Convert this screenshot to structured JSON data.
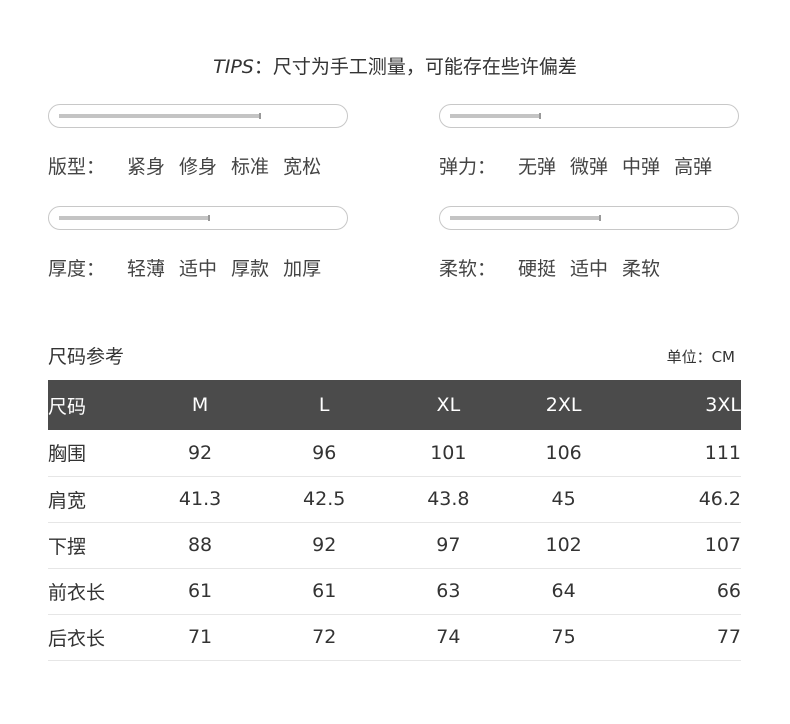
{
  "tips": {
    "prefix": "TIPS",
    "text": "：尺寸为手工测量，可能存在些许偏差"
  },
  "attributes": [
    {
      "label": "版型：",
      "options": [
        "紧身",
        "修身",
        "标准",
        "宽松"
      ],
      "level": 0.67
    },
    {
      "label": "弹力：",
      "options": [
        "无弹",
        "微弹",
        "中弹",
        "高弹"
      ],
      "level": 0.3
    },
    {
      "label": "厚度：",
      "options": [
        "轻薄",
        "适中",
        "厚款",
        "加厚"
      ],
      "level": 0.5
    },
    {
      "label": "柔软：",
      "options": [
        "硬挺",
        "适中",
        "柔软"
      ],
      "level": 0.5
    }
  ],
  "size_chart": {
    "title": "尺码参考",
    "unit": "单位：CM",
    "headers": [
      "尺码",
      "M",
      "L",
      "XL",
      "2XL",
      "3XL"
    ],
    "rows": [
      [
        "胸围",
        "92",
        "96",
        "101",
        "106",
        "111"
      ],
      [
        "肩宽",
        "41.3",
        "42.5",
        "43.8",
        "45",
        "46.2"
      ],
      [
        "下摆",
        "88",
        "92",
        "97",
        "102",
        "107"
      ],
      [
        "前衣长",
        "61",
        "61",
        "63",
        "64",
        "66"
      ],
      [
        "后衣长",
        "71",
        "72",
        "74",
        "75",
        "77"
      ]
    ]
  }
}
